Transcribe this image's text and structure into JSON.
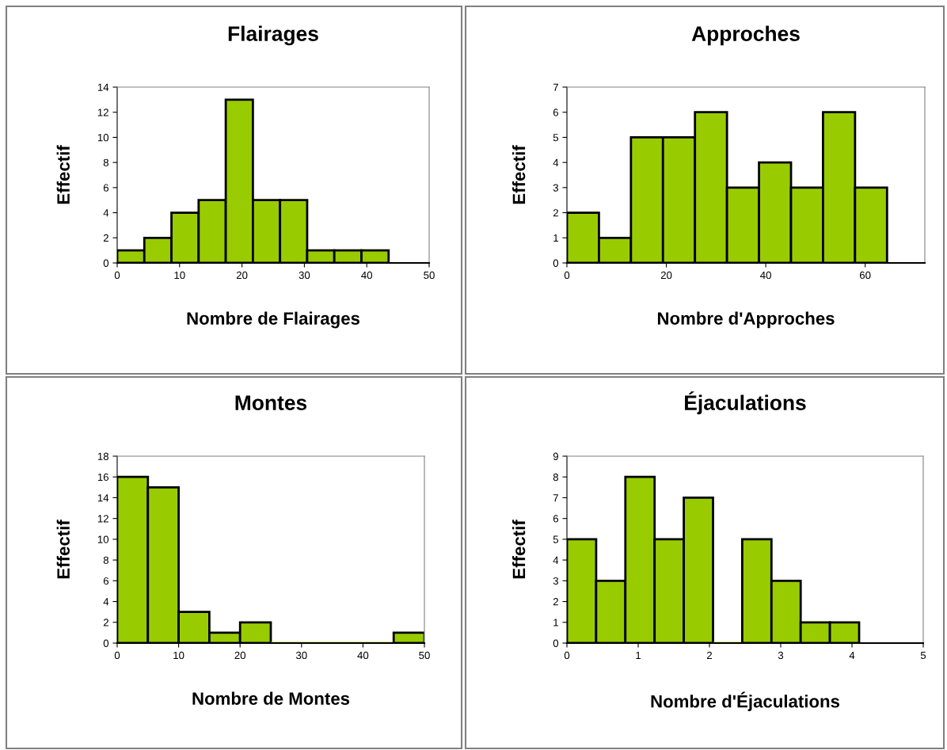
{
  "chart_data": [
    {
      "type": "histogram",
      "title": "Flairages",
      "xlabel": "Nombre de Flairages",
      "ylabel": "Effectif",
      "color": "#99cc00",
      "bins": [
        0,
        4.35,
        8.7,
        13.05,
        17.4,
        21.75,
        26.1,
        30.45,
        34.8,
        39.15,
        43.5
      ],
      "values": [
        1,
        2,
        4,
        5,
        13,
        5,
        5,
        1,
        1,
        1
      ],
      "xlim": [
        0,
        50
      ],
      "xticks": [
        0,
        10,
        20,
        30,
        40,
        50
      ],
      "ylim": [
        0,
        14
      ],
      "yticks": [
        0,
        2,
        4,
        6,
        8,
        10,
        12,
        14
      ],
      "grid": false
    },
    {
      "type": "histogram",
      "title": "Approches",
      "xlabel": "Nombre d'Approches",
      "ylabel": "Effectif",
      "color": "#99cc00",
      "bins": [
        0,
        6.44,
        12.88,
        19.32,
        25.76,
        32.2,
        38.64,
        45.08,
        51.52,
        57.96,
        64.4
      ],
      "values": [
        2,
        1,
        5,
        5,
        6,
        3,
        4,
        3,
        6,
        3
      ],
      "xlim": [
        0,
        72
      ],
      "xticks": [
        0,
        20,
        40,
        60
      ],
      "ylim": [
        0,
        7
      ],
      "yticks": [
        0,
        1,
        2,
        3,
        4,
        5,
        6,
        7
      ],
      "grid": false
    },
    {
      "type": "histogram",
      "title": "Montes",
      "xlabel": "Nombre de Montes",
      "ylabel": "Effectif",
      "color": "#99cc00",
      "bins": [
        0,
        5,
        10,
        15,
        20,
        25,
        30,
        35,
        40,
        45,
        50
      ],
      "values": [
        16,
        15,
        3,
        1,
        2,
        0,
        0,
        0,
        0,
        1
      ],
      "xlim": [
        0,
        50
      ],
      "xticks": [
        0,
        10,
        20,
        30,
        40,
        50
      ],
      "ylim": [
        0,
        18
      ],
      "yticks": [
        0,
        2,
        4,
        6,
        8,
        10,
        12,
        14,
        16,
        18
      ],
      "grid": false
    },
    {
      "type": "histogram",
      "title": "Éjaculations",
      "xlabel": "Nombre d'Éjaculations",
      "ylabel": "Effectif",
      "color": "#99cc00",
      "bins": [
        0,
        0.41,
        0.82,
        1.23,
        1.64,
        2.05,
        2.46,
        2.87,
        3.28,
        3.69,
        4.1
      ],
      "values": [
        5,
        3,
        8,
        5,
        7,
        0,
        5,
        3,
        1,
        1
      ],
      "xlim": [
        0,
        5
      ],
      "xticks": [
        0,
        1,
        2,
        3,
        4,
        5
      ],
      "ylim": [
        0,
        9
      ],
      "yticks": [
        0,
        1,
        2,
        3,
        4,
        5,
        6,
        7,
        8,
        9
      ],
      "grid": false
    }
  ]
}
